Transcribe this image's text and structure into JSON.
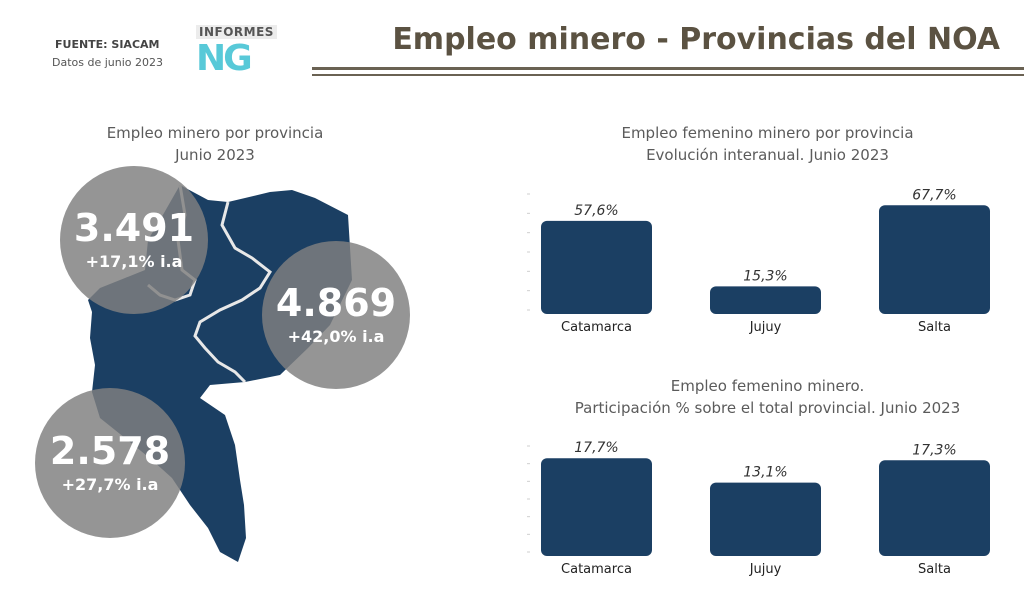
{
  "header": {
    "source": "FUENTE: SIACAM",
    "date": "Datos de junio 2023",
    "title": "Empleo minero - Provincias del NOA",
    "logo_text": "INFORMES",
    "logo_mark": "NG"
  },
  "map": {
    "title_line1": "Empleo minero por provincia",
    "title_line2": "Junio 2023",
    "fill_color": "#1b3f63",
    "bubbles": {
      "catamarca": {
        "value": "3.491",
        "change": "+17,1% i.a"
      },
      "salta": {
        "value": "4.869",
        "change": "+42,0% i.a"
      },
      "jujuy": {
        "value": "2.578",
        "change": "+27,7% i.a"
      }
    }
  },
  "chart_data": [
    {
      "type": "bar",
      "title": "Empleo femenino minero por provincia\nEvolución interanual. Junio 2023",
      "title_line1": "Empleo femenino minero por provincia",
      "title_line2": "Evolución interanual. Junio 2023",
      "categories": [
        "Catamarca",
        "Jujuy",
        "Salta"
      ],
      "values": [
        57.6,
        15.3,
        67.7
      ],
      "value_labels": [
        "57,6%",
        "15,3%",
        "67,7%"
      ],
      "ylim": [
        0,
        75
      ],
      "bar_color": "#1b3f63"
    },
    {
      "type": "bar",
      "title": "Empleo femenino minero.\nParticipación % sobre el total provincial. Junio 2023",
      "title_line1": "Empleo femenino minero.",
      "title_line2": "Participación % sobre el total provincial. Junio 2023",
      "categories": [
        "Catamarca",
        "Jujuy",
        "Salta"
      ],
      "values": [
        17.7,
        13.1,
        17.3
      ],
      "value_labels": [
        "17,7%",
        "13,1%",
        "17,3%"
      ],
      "ylim": [
        0,
        20
      ],
      "bar_color": "#1b3f63"
    }
  ]
}
